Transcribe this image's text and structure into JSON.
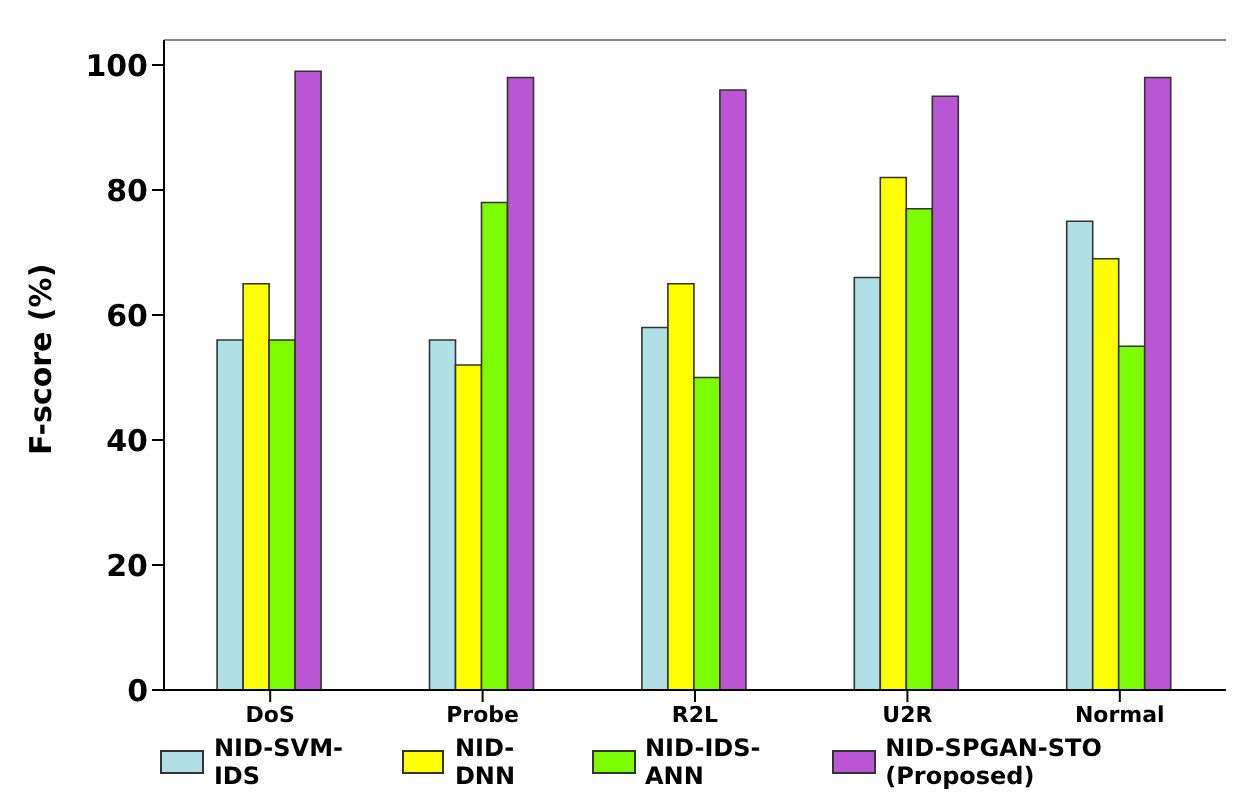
{
  "chart_data": {
    "type": "bar",
    "ylabel": "F-score (%)",
    "categories": [
      "DoS",
      "Probe",
      "R2L",
      "U2R",
      "Normal"
    ],
    "series": [
      {
        "name": "NID-SVM-IDS",
        "color": "#b0e0e6",
        "values": [
          56,
          56,
          58,
          66,
          75
        ]
      },
      {
        "name": "NID-DNN",
        "color": "#ffff00",
        "values": [
          65,
          52,
          65,
          82,
          69
        ]
      },
      {
        "name": "NID-IDS-ANN",
        "color": "#7cfc00",
        "values": [
          56,
          78,
          50,
          77,
          55
        ]
      },
      {
        "name": "NID-SPGAN-STO (Proposed)",
        "color": "#ba55d3",
        "values": [
          99,
          98,
          96,
          95,
          98
        ]
      }
    ],
    "ylim": [
      0,
      104
    ],
    "yticks": [
      0,
      20,
      40,
      60,
      80,
      100
    ],
    "grid": false,
    "legend": "bottom"
  }
}
